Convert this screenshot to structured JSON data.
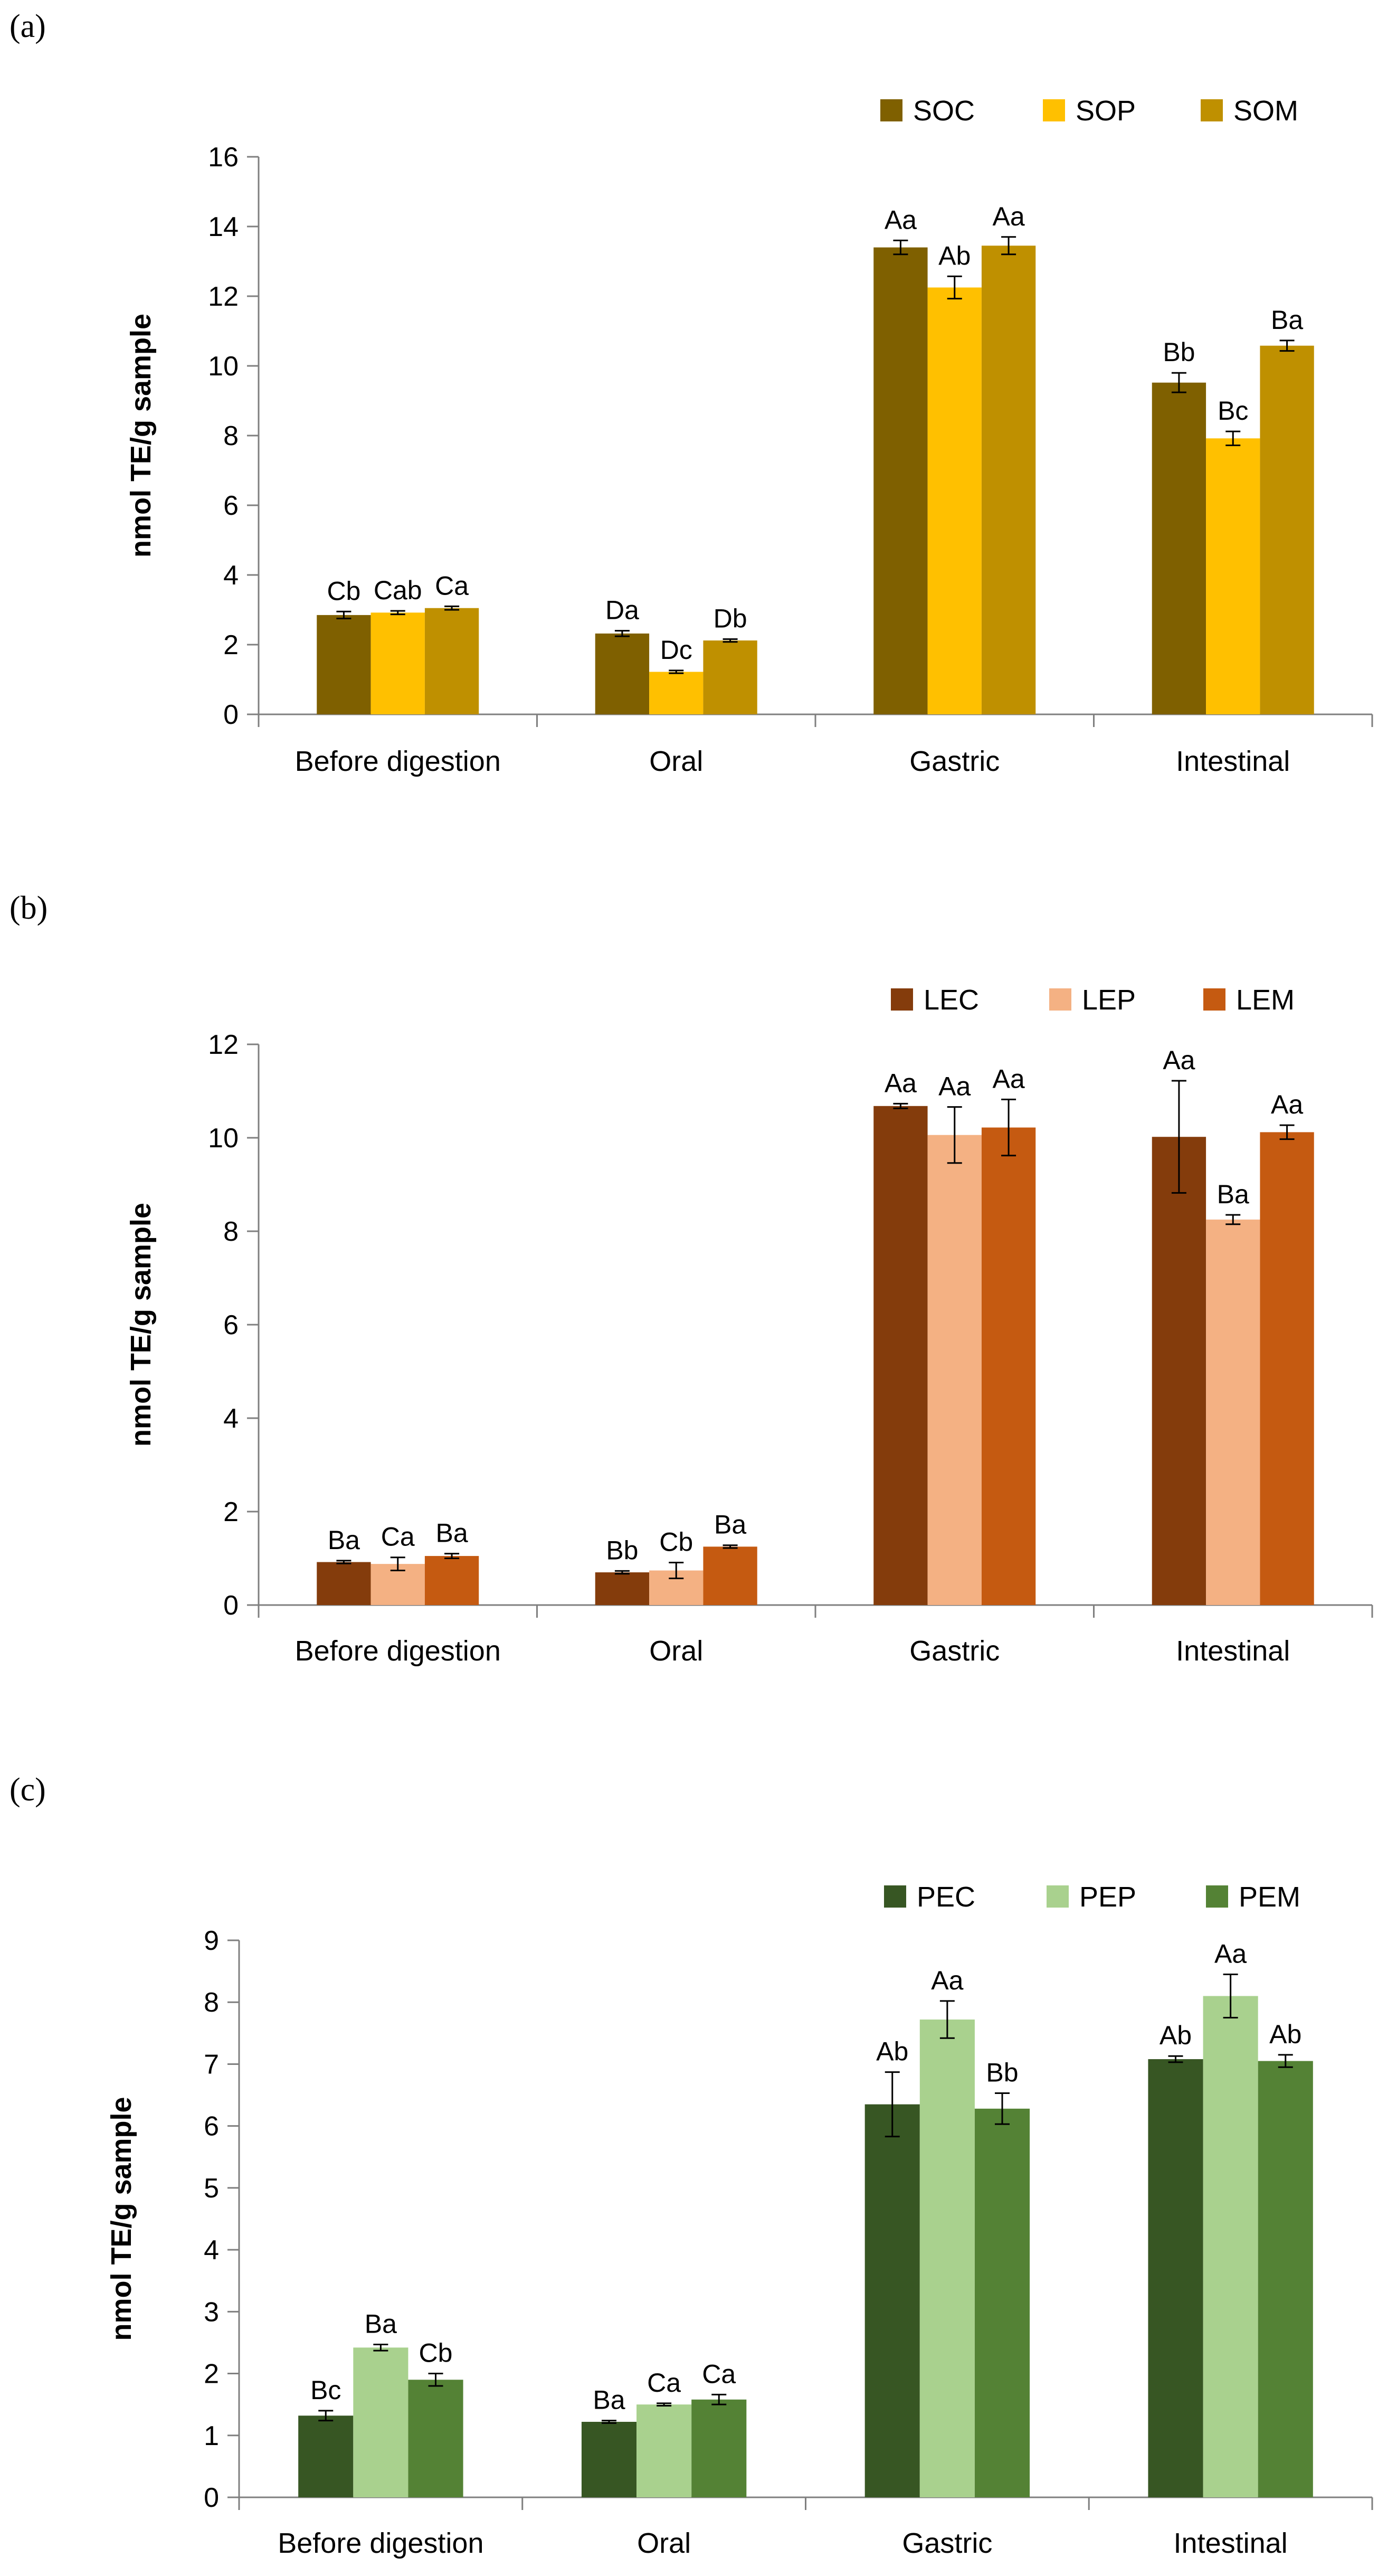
{
  "chart_data": [
    {
      "type": "bar",
      "panel_label": "(a)",
      "ylabel": "nmol TE/g sample",
      "xlabel": "",
      "ylim": [
        0,
        16
      ],
      "yticks": [
        0,
        2,
        4,
        6,
        8,
        10,
        12,
        14,
        16
      ],
      "categories": [
        "Before digestion",
        "Oral",
        "Gastric",
        "Intestinal"
      ],
      "legend_position": "top-right",
      "series": [
        {
          "name": "SOC",
          "color": "#7f6000",
          "values": [
            2.85,
            2.32,
            13.4,
            9.52
          ],
          "errors": [
            0.1,
            0.08,
            0.2,
            0.28
          ],
          "labels": [
            "Cb",
            "Da",
            "Aa",
            "Bb"
          ]
        },
        {
          "name": "SOP",
          "color": "#ffc000",
          "values": [
            2.92,
            1.22,
            12.25,
            7.92
          ],
          "errors": [
            0.05,
            0.04,
            0.32,
            0.2
          ],
          "labels": [
            "Cab",
            "Dc",
            "Ab",
            "Bc"
          ]
        },
        {
          "name": "SOM",
          "color": "#bf9000",
          "values": [
            3.05,
            2.12,
            13.45,
            10.58
          ],
          "errors": [
            0.05,
            0.04,
            0.25,
            0.15
          ],
          "labels": [
            "Ca",
            "Db",
            "Aa",
            "Ba"
          ]
        }
      ]
    },
    {
      "type": "bar",
      "panel_label": "(b)",
      "ylabel": "nmol TE/g sample",
      "xlabel": "",
      "ylim": [
        0,
        12
      ],
      "yticks": [
        0,
        2,
        4,
        6,
        8,
        10,
        12
      ],
      "categories": [
        "Before digestion",
        "Oral",
        "Gastric",
        "Intestinal"
      ],
      "legend_position": "top-right",
      "series": [
        {
          "name": "LEC",
          "color": "#843c0c",
          "values": [
            0.92,
            0.7,
            10.68,
            10.02
          ],
          "errors": [
            0.03,
            0.03,
            0.05,
            1.2
          ],
          "labels": [
            "Ba",
            "Bb",
            "Aa",
            "Aa"
          ]
        },
        {
          "name": "LEP",
          "color": "#f4b183",
          "values": [
            0.88,
            0.74,
            10.06,
            8.25
          ],
          "errors": [
            0.14,
            0.17,
            0.6,
            0.1
          ],
          "labels": [
            "Ca",
            "Cb",
            "Aa",
            "Ba"
          ]
        },
        {
          "name": "LEM",
          "color": "#c55a11",
          "values": [
            1.05,
            1.25,
            10.22,
            10.12
          ],
          "errors": [
            0.05,
            0.03,
            0.6,
            0.15
          ],
          "labels": [
            "Ba",
            "Ba",
            "Aa",
            "Aa"
          ]
        }
      ]
    },
    {
      "type": "bar",
      "panel_label": "(c)",
      "ylabel": "nmol TE/g sample",
      "xlabel": "",
      "ylim": [
        0,
        9
      ],
      "yticks": [
        0,
        1,
        2,
        3,
        4,
        5,
        6,
        7,
        8,
        9
      ],
      "categories": [
        "Before digestion",
        "Oral",
        "Gastric",
        "Intestinal"
      ],
      "legend_position": "top-right",
      "series": [
        {
          "name": "PEC",
          "color": "#375623",
          "values": [
            1.32,
            1.22,
            6.35,
            7.08
          ],
          "errors": [
            0.08,
            0.02,
            0.52,
            0.05
          ],
          "labels": [
            "Bc",
            "Ba",
            "Ab",
            "Ab"
          ]
        },
        {
          "name": "PEP",
          "color": "#a9d18e",
          "values": [
            2.42,
            1.5,
            7.72,
            8.1
          ],
          "errors": [
            0.05,
            0.02,
            0.3,
            0.35
          ],
          "labels": [
            "Ba",
            "Ca",
            "Aa",
            "Aa"
          ]
        },
        {
          "name": "PEM",
          "color": "#548235",
          "values": [
            1.9,
            1.58,
            6.28,
            7.05
          ],
          "errors": [
            0.1,
            0.08,
            0.25,
            0.1
          ],
          "labels": [
            "Cb",
            "Ca",
            "Bb",
            "Ab"
          ]
        }
      ]
    }
  ]
}
